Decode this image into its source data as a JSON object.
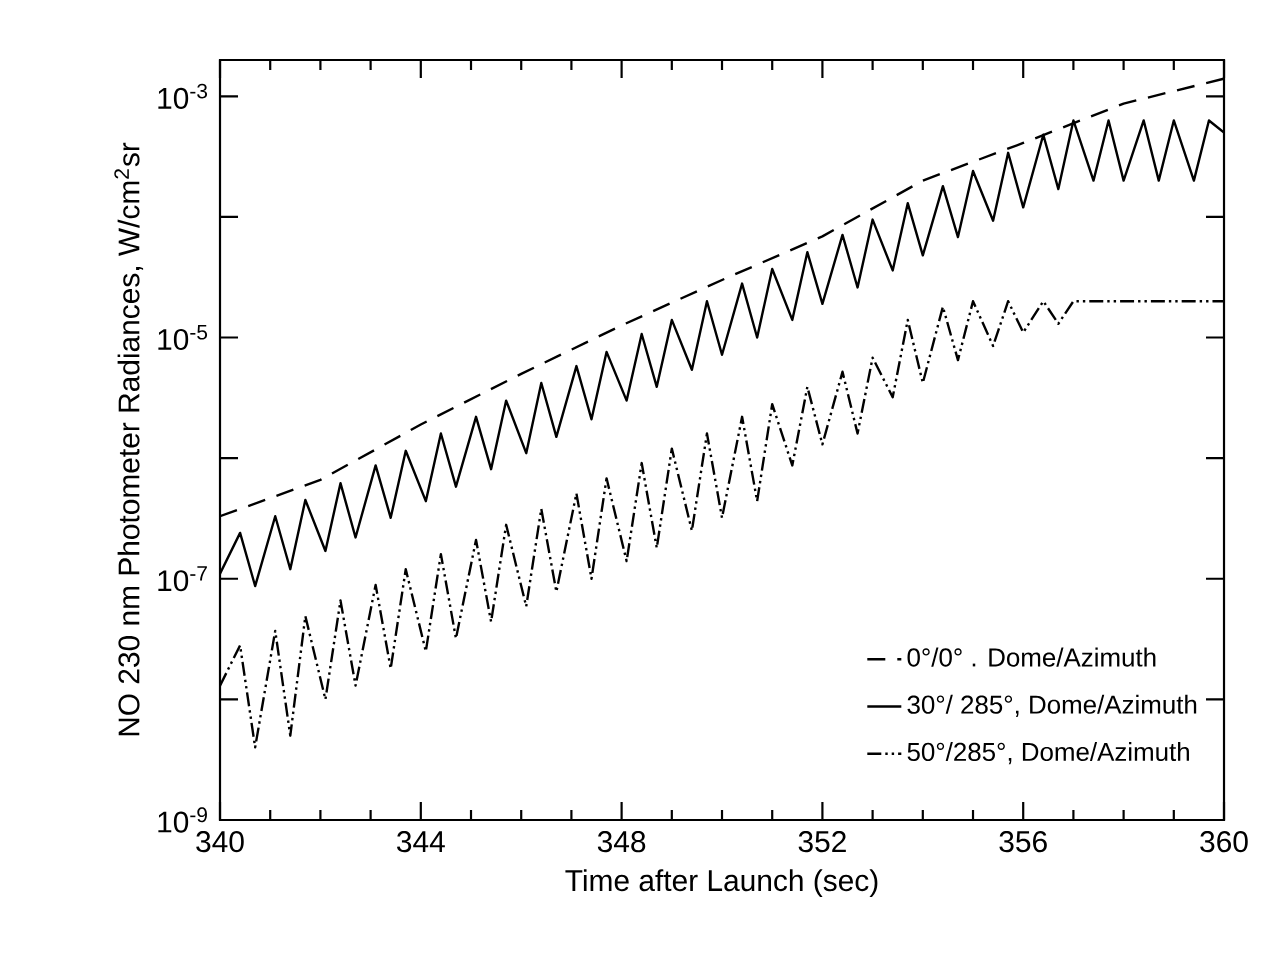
{
  "chart_data": {
    "type": "line",
    "xlabel": "Time after Launch (sec)",
    "ylabel": "NO 230 nm Photometer  Radiances, W/cm$^{2}$sr",
    "log": "y",
    "grid": false,
    "legend": "bottom right",
    "marker": "none",
    "xlim": [
      340,
      360
    ],
    "xticks": [
      340,
      344,
      348,
      352,
      356,
      360
    ],
    "ylim": [
      1e-09,
      0.002
    ],
    "yticks": [
      {
        "value": 1e-09,
        "label": "10$^{-9}$"
      },
      {
        "value": 1e-08,
        "label": null
      },
      {
        "value": 1e-07,
        "label": "10$^{-7}$"
      },
      {
        "value": 1e-06,
        "label": null
      },
      {
        "value": 1e-05,
        "label": "10$^{-5}$"
      },
      {
        "value": 0.0001,
        "label": null
      },
      {
        "value": 0.001,
        "label": "10$^{-3}$"
      }
    ],
    "series": [
      {
        "name": "0°/0°  .  Dome/Azimuth",
        "color": "#000000",
        "line_style": "dashed",
        "x": [
          340,
          342,
          344,
          346,
          348,
          350,
          352,
          354,
          356,
          358,
          360
        ],
        "values": [
          3.3e-07,
          6.6e-07,
          1.9e-06,
          5e-06,
          1.26e-05,
          3e-05,
          6.9e-05,
          0.0002,
          0.00041,
          0.00087,
          0.0014
        ]
      },
      {
        "name": "30°/  285°,  Dome/Azimuth",
        "color": "#000000",
        "line_style": "solid",
        "x": [
          340.0,
          340.4,
          340.7,
          341.1,
          341.4,
          341.7,
          342.1,
          342.4,
          342.7,
          343.1,
          343.4,
          343.7,
          344.1,
          344.4,
          344.7,
          345.1,
          345.4,
          345.7,
          346.1,
          346.4,
          346.7,
          347.1,
          347.4,
          347.7,
          348.1,
          348.4,
          348.7,
          349.0,
          349.4,
          349.7,
          350.0,
          350.4,
          350.7,
          351.0,
          351.4,
          351.7,
          352.0,
          352.4,
          352.7,
          353.0,
          353.4,
          353.7,
          354.0,
          354.4,
          354.7,
          355.0,
          355.4,
          355.7,
          356.0,
          356.4,
          356.7,
          357.0,
          357.4,
          357.7,
          358.0,
          358.4,
          358.7,
          359.0,
          359.4,
          359.7,
          360.0
        ],
        "values": [
          1.1e-07,
          2.4e-07,
          8.7e-08,
          3.3e-07,
          1.2e-07,
          4.5e-07,
          1.7e-07,
          6.2e-07,
          2.2e-07,
          8.7e-07,
          3.2e-07,
          1.15e-06,
          4.4e-07,
          1.6e-06,
          5.8e-07,
          2.2e-06,
          8.1e-07,
          3e-06,
          1.1e-06,
          4.2e-06,
          1.5e-06,
          5.8e-06,
          2.1e-06,
          7.6e-06,
          3e-06,
          1.07e-05,
          3.9e-06,
          1.4e-05,
          5.4e-06,
          2e-05,
          7.2e-06,
          2.8e-05,
          1e-05,
          3.7e-05,
          1.4e-05,
          5.1e-05,
          1.9e-05,
          7.1e-05,
          2.6e-05,
          9.5e-05,
          3.6e-05,
          0.00013,
          4.8e-05,
          0.00018,
          6.8e-05,
          0.00024,
          9.3e-05,
          0.00034,
          0.00012,
          0.00048,
          0.00017,
          0.00063,
          0.0002,
          0.00063,
          0.0002,
          0.00063,
          0.0002,
          0.00063,
          0.0002,
          0.00063,
          0.0005
        ]
      },
      {
        "name": "50°/285°,  Dome/Azimuth",
        "color": "#000000",
        "line_style": "dotted",
        "x": [
          340.0,
          340.4,
          340.7,
          341.1,
          341.4,
          341.7,
          342.1,
          342.4,
          342.7,
          343.1,
          343.4,
          343.7,
          344.1,
          344.4,
          344.7,
          345.1,
          345.4,
          345.7,
          346.1,
          346.4,
          346.7,
          347.1,
          347.4,
          347.7,
          348.1,
          348.4,
          348.7,
          349.0,
          349.4,
          349.7,
          350.0,
          350.4,
          350.7,
          351.0,
          351.4,
          351.7,
          352.0,
          352.4,
          352.7,
          353.0,
          353.4,
          353.7,
          354.0,
          354.4,
          354.7,
          355.0,
          355.4,
          355.7,
          356.0,
          356.4,
          356.7,
          357.0,
          357.3,
          358.0,
          359.0,
          360.0
        ],
        "values": [
          1.3e-08,
          2.8e-08,
          4e-09,
          3.7e-08,
          5e-09,
          4.9e-08,
          1e-08,
          6.6e-08,
          1.3e-08,
          8.9e-08,
          1.8e-08,
          1.2e-07,
          2.5e-08,
          1.6e-07,
          3.2e-08,
          2.1e-07,
          4.4e-08,
          2.8e-07,
          5.9e-08,
          3.8e-07,
          7.8e-08,
          5.1e-07,
          1e-07,
          6.8e-07,
          1.4e-07,
          9.1e-07,
          1.8e-07,
          1.2e-06,
          2.5e-07,
          1.6e-06,
          3.2e-07,
          2.2e-06,
          4.4e-07,
          2.8e-06,
          8.7e-07,
          3.9e-06,
          1.3e-06,
          5.2e-06,
          1.6e-06,
          6.8e-06,
          3.2e-06,
          1.4e-05,
          4.2e-06,
          1.8e-05,
          6.5e-06,
          2e-05,
          8.5e-06,
          2e-05,
          1.1e-05,
          2e-05,
          1.3e-05,
          2e-05,
          2e-05,
          2e-05,
          2e-05,
          2e-05
        ]
      }
    ]
  }
}
